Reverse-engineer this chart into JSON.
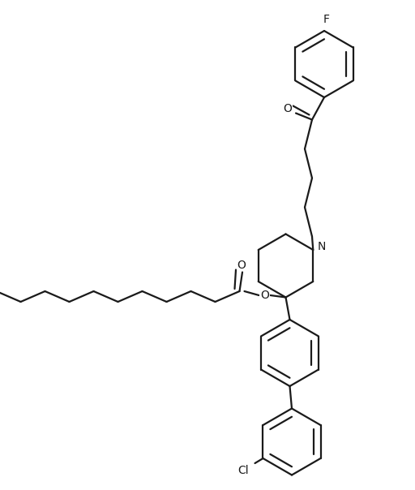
{
  "background_color": "#ffffff",
  "line_color": "#1a1a1a",
  "line_width": 1.6,
  "figsize": [
    5.12,
    6.04
  ],
  "dpi": 100,
  "xlim": [
    0,
    10.24
  ],
  "ylim": [
    0,
    12.08
  ]
}
